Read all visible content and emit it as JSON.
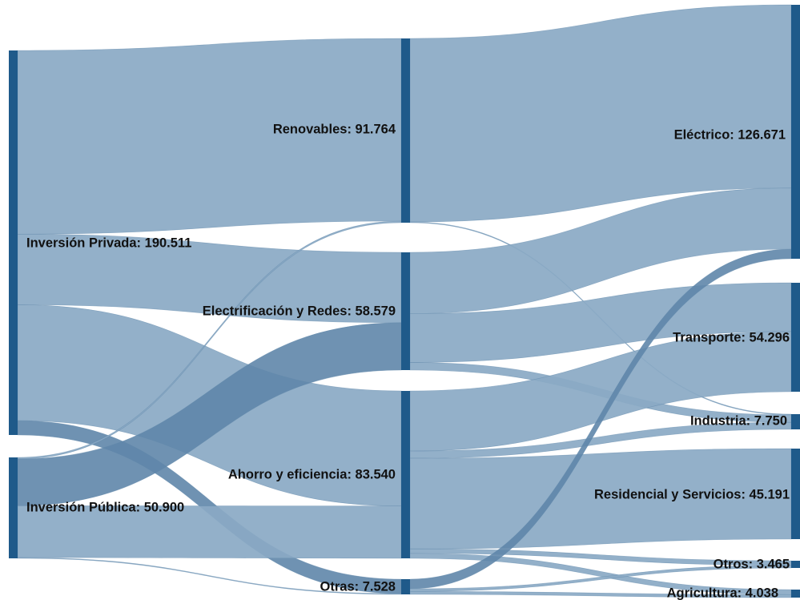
{
  "colors": {
    "node": "#1f5a8a",
    "link": "#8aa9c4",
    "link_dark": "#5f86aa",
    "background": "#ffffff",
    "text": "#111111"
  },
  "nodes": [
    {
      "id": "priv",
      "label": "Inversión Privada: 190.511",
      "name": "Inversión Privada",
      "value": 190.511
    },
    {
      "id": "pub",
      "label": "Inversión Pública: 50.900",
      "name": "Inversión Pública",
      "value": 50.9
    },
    {
      "id": "ren",
      "label": "Renovables: 91.764",
      "name": "Renovables",
      "value": 91.764
    },
    {
      "id": "ele",
      "label": "Electrificación y Redes: 58.579",
      "name": "Electrificación y Redes",
      "value": 58.579
    },
    {
      "id": "aho",
      "label": "Ahorro y eficiencia: 83.540",
      "name": "Ahorro y eficiencia",
      "value": 83.54
    },
    {
      "id": "otr",
      "label": "Otras: 7.528",
      "name": "Otras",
      "value": 7.528
    },
    {
      "id": "elc",
      "label": "Eléctrico: 126.671",
      "name": "Eléctrico",
      "value": 126.671
    },
    {
      "id": "tra",
      "label": "Transporte: 54.296",
      "name": "Transporte",
      "value": 54.296
    },
    {
      "id": "ind",
      "label": "Industria: 7.750",
      "name": "Industria",
      "value": 7.75
    },
    {
      "id": "res",
      "label": "Residencial y Servicios: 45.191",
      "name": "Residencial y Servicios",
      "value": 45.191
    },
    {
      "id": "oto",
      "label": "Otros: 3.465",
      "name": "Otros",
      "value": 3.465
    },
    {
      "id": "agr",
      "label": "Agricultura: 4.038",
      "name": "Agricultura",
      "value": 4.038
    }
  ],
  "links": [
    {
      "source": "priv",
      "target": "ren",
      "value": 91.0
    },
    {
      "source": "priv",
      "target": "ele",
      "value": 35.0
    },
    {
      "source": "priv",
      "target": "aho",
      "value": 57.4
    },
    {
      "source": "priv",
      "target": "otr",
      "value": 7.1
    },
    {
      "source": "pub",
      "target": "ren",
      "value": 0.8
    },
    {
      "source": "pub",
      "target": "ele",
      "value": 23.6
    },
    {
      "source": "pub",
      "target": "aho",
      "value": 26.1
    },
    {
      "source": "pub",
      "target": "otr",
      "value": 0.4
    },
    {
      "source": "ren",
      "target": "elc",
      "value": 91.4
    },
    {
      "source": "ren",
      "target": "ind",
      "value": 0.4
    },
    {
      "source": "ele",
      "target": "elc",
      "value": 30.5
    },
    {
      "source": "ele",
      "target": "tra",
      "value": 24.3
    },
    {
      "source": "ele",
      "target": "ind",
      "value": 3.8
    },
    {
      "source": "aho",
      "target": "tra",
      "value": 30.0
    },
    {
      "source": "aho",
      "target": "ind",
      "value": 3.6
    },
    {
      "source": "aho",
      "target": "res",
      "value": 45.2
    },
    {
      "source": "aho",
      "target": "oto",
      "value": 2.2
    },
    {
      "source": "aho",
      "target": "agr",
      "value": 2.5
    },
    {
      "source": "otr",
      "target": "elc",
      "value": 4.8
    },
    {
      "source": "otr",
      "target": "oto",
      "value": 1.3
    },
    {
      "source": "otr",
      "target": "agr",
      "value": 1.5
    }
  ]
}
